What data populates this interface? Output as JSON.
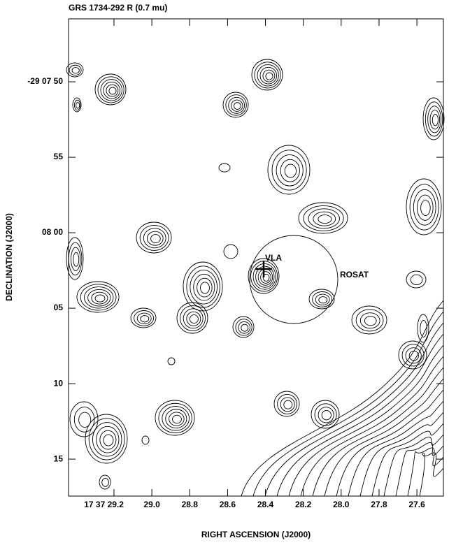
{
  "chart_data": {
    "type": "contour",
    "title": "GRS 1734-292  R (0.7 mu)",
    "x_label": "RIGHT ASCENSION (J2000)",
    "y_label": "DECLINATION (J2000)",
    "xlim": [
      29.44,
      27.46
    ],
    "xticks": [
      {
        "value": 29.2,
        "label": "17 37 29.2"
      },
      {
        "value": 29.0,
        "label": "29.0"
      },
      28.8,
      28.6,
      28.4,
      28.2,
      {
        "value": 28.0,
        "label": "28.0"
      },
      27.8,
      27.6
    ],
    "ylim": [
      77.45,
      45.83
    ],
    "yticks": [
      {
        "value": 50,
        "label": "-29 07 50"
      },
      55,
      {
        "value": 60,
        "label": "08 00"
      },
      {
        "value": 65,
        "label": "05"
      },
      {
        "value": 70,
        "label": "10"
      },
      {
        "value": 75,
        "label": "15"
      }
    ],
    "annotations": [
      "VLA",
      "ROSAT"
    ]
  }
}
